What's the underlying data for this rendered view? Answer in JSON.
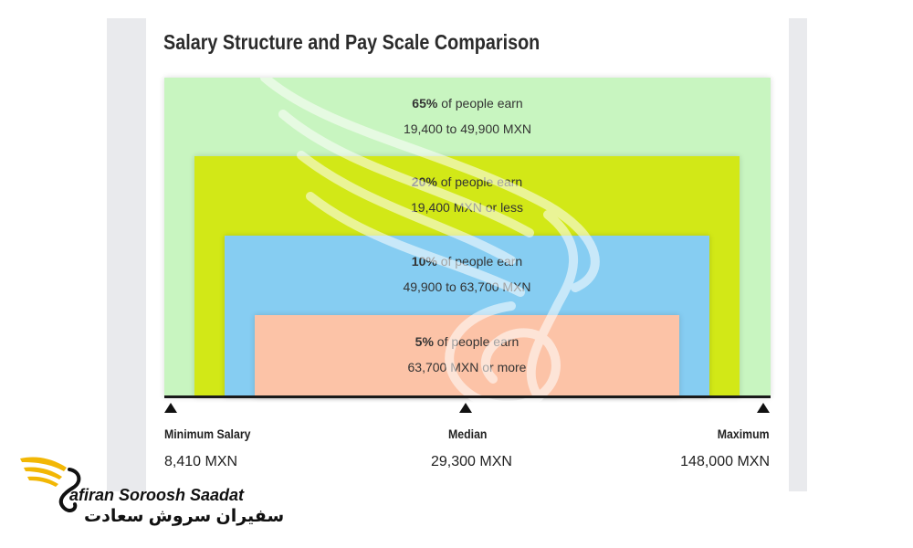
{
  "chart_data": {
    "type": "nested-bands",
    "title": "Salary Structure and Pay Scale Comparison",
    "bands": [
      {
        "percent": "65%",
        "suffix": " of people earn",
        "range": "19,400 to 49,900 MXN",
        "color": "#c8f5c0"
      },
      {
        "percent": "20%",
        "suffix": " of people earn",
        "range": "19,400 MXN or less",
        "color": "#d2e817"
      },
      {
        "percent": "10%",
        "suffix": " of people earn",
        "range": "49,900 to 63,700 MXN",
        "color": "#86cdf2"
      },
      {
        "percent": "5%",
        "suffix": " of people earn",
        "range": "63,700 MXN or more",
        "color": "#fcc3a7"
      }
    ],
    "markers": [
      {
        "label": "Minimum Salary",
        "value": "8,410 MXN"
      },
      {
        "label": "Median",
        "value": "29,300 MXN"
      },
      {
        "label": "Maximum",
        "value": "148,000 MXN"
      }
    ]
  },
  "logo": {
    "name_en": "afiran Soroosh Saadat",
    "name_fa": "سفیران سروش سعادت",
    "color": "#f2b705"
  }
}
